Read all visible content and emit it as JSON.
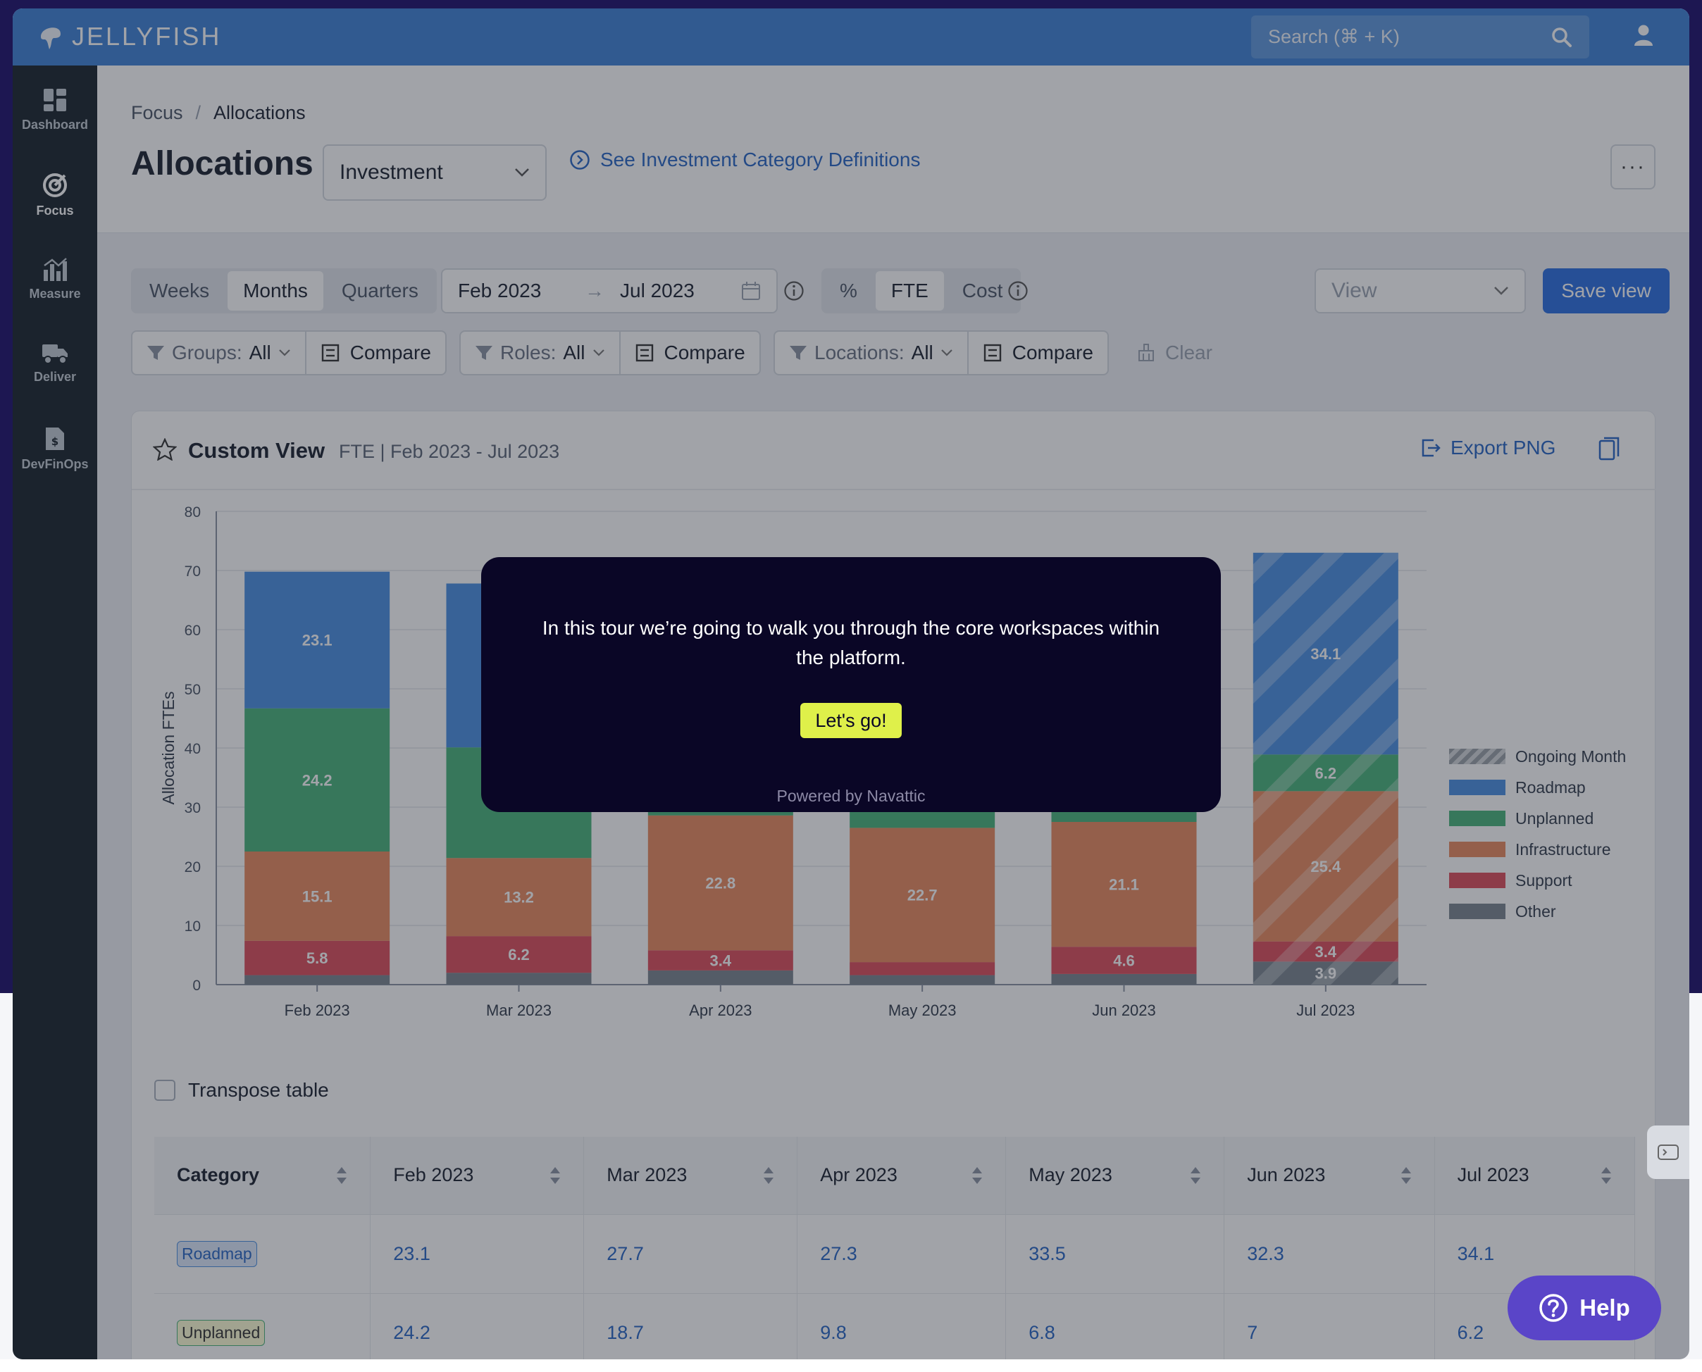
{
  "brand": {
    "name": "JELLYFISH"
  },
  "search": {
    "placeholder": "Search (⌘ + K)"
  },
  "sidebar": {
    "items": [
      {
        "label": "Dashboard",
        "icon": "dashboard-icon"
      },
      {
        "label": "Focus",
        "icon": "target-icon",
        "active": true
      },
      {
        "label": "Measure",
        "icon": "bar-chart-icon"
      },
      {
        "label": "Deliver",
        "icon": "truck-icon"
      },
      {
        "label": "DevFinOps",
        "icon": "dollar-file-icon"
      }
    ]
  },
  "breadcrumb": {
    "parent": "Focus",
    "separator": "/",
    "current": "Allocations"
  },
  "page": {
    "title": "Allocations",
    "view_select": "Investment",
    "definitions_link": "See Investment Category Definitions",
    "more_label": "···"
  },
  "toolbar": {
    "granularity": [
      "Weeks",
      "Months",
      "Quarters"
    ],
    "granularity_selected": "Months",
    "date_from": "Feb 2023",
    "date_to": "Jul 2023",
    "arrow": "→",
    "units": [
      "%",
      "FTE",
      "Cost"
    ],
    "unit_selected": "FTE",
    "view_placeholder": "View",
    "save_label": "Save view"
  },
  "filters": {
    "groups_label": "Groups:",
    "groups_value": "All",
    "roles_label": "Roles:",
    "roles_value": "All",
    "locations_label": "Locations:",
    "locations_value": "All",
    "compare_label": "Compare",
    "clear_label": "Clear"
  },
  "card": {
    "title": "Custom View",
    "subtitle": "FTE | Feb 2023 - Jul 2023",
    "export_label": "Export PNG",
    "transpose_label": "Transpose table"
  },
  "colors": {
    "roadmap": "#4a90e2",
    "unplanned": "#49b37a",
    "infrastructure": "#e88a60",
    "support": "#dd4f5c",
    "other": "#7a8590",
    "ongoing": "#9aa0a8",
    "accent": "#2c6fe0"
  },
  "chart_data": {
    "type": "bar",
    "stacked": true,
    "ylabel": "Allocation FTEs",
    "ylim": [
      0,
      80
    ],
    "yticks": [
      0,
      10,
      20,
      30,
      40,
      50,
      60,
      70,
      80
    ],
    "categories": [
      "Feb 2023",
      "Mar 2023",
      "Apr 2023",
      "May 2023",
      "Jun 2023",
      "Jul 2023"
    ],
    "ongoing_month": "Jul 2023",
    "legend": [
      "Ongoing Month",
      "Roadmap",
      "Unplanned",
      "Infrastructure",
      "Support",
      "Other"
    ],
    "legend_position": "right",
    "series": [
      {
        "name": "Other",
        "key": "other",
        "values": [
          1.6,
          2.0,
          2.4,
          1.6,
          1.8,
          3.9
        ],
        "labels": [
          "",
          "",
          "",
          "",
          "",
          "3.9"
        ]
      },
      {
        "name": "Support",
        "key": "support",
        "values": [
          5.8,
          6.2,
          3.4,
          2.2,
          4.6,
          3.4
        ],
        "labels": [
          "5.8",
          "6.2",
          "3.4",
          "",
          "4.6",
          "3.4"
        ]
      },
      {
        "name": "Infrastructure",
        "key": "infrastructure",
        "values": [
          15.1,
          13.2,
          22.8,
          22.7,
          21.1,
          25.4
        ],
        "labels": [
          "15.1",
          "13.2",
          "22.8",
          "22.7",
          "21.1",
          "25.4"
        ]
      },
      {
        "name": "Unplanned",
        "key": "unplanned",
        "values": [
          24.2,
          18.7,
          9.8,
          6.8,
          7,
          6.2
        ],
        "labels": [
          "24.2",
          "",
          "",
          "",
          "",
          "6.2"
        ]
      },
      {
        "name": "Roadmap",
        "key": "roadmap",
        "values": [
          23.1,
          27.7,
          27.3,
          33.5,
          32.3,
          34.1
        ],
        "labels": [
          "23.1",
          "",
          "",
          "",
          "",
          "34.1"
        ]
      }
    ]
  },
  "table": {
    "headers": [
      "Category",
      "Feb 2023",
      "Mar 2023",
      "Apr 2023",
      "May 2023",
      "Jun 2023",
      "Jul 2023"
    ],
    "rows": [
      {
        "category": "Roadmap",
        "values": [
          "23.1",
          "27.7",
          "27.3",
          "33.5",
          "32.3",
          "34.1"
        ]
      },
      {
        "category": "Unplanned",
        "values": [
          "24.2",
          "18.7",
          "9.8",
          "6.8",
          "7",
          "6.2"
        ]
      }
    ]
  },
  "tour": {
    "message": "In this tour we’re going to walk you through the core workspaces within the platform.",
    "button": "Let's go!",
    "powered_by": "Powered by Navattic"
  },
  "help": {
    "label": "Help"
  }
}
